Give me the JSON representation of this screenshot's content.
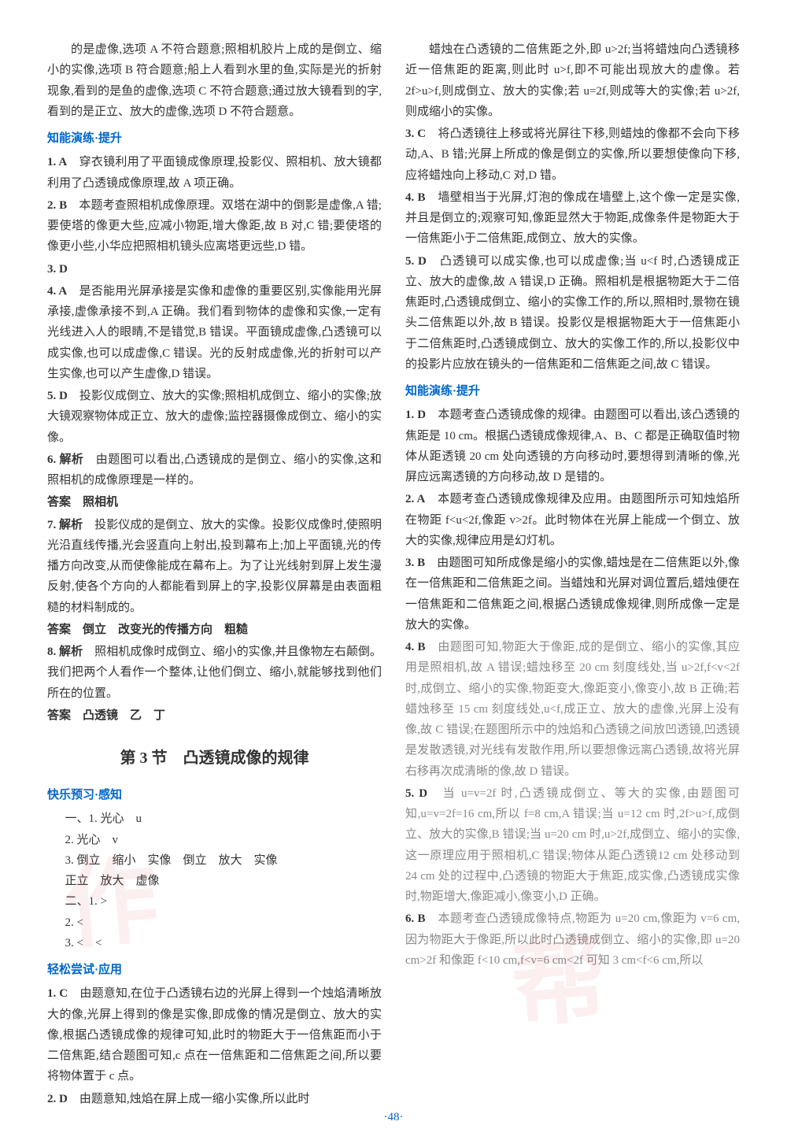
{
  "page_number": "·48·",
  "watermark_text": "作业帮",
  "colors": {
    "text": "#333333",
    "header_blue": "#0066cc",
    "page_num_blue": "#0066cc",
    "background": "#ffffff",
    "watermark": "rgba(200, 50, 50, 0.08)",
    "faded": "#888888"
  },
  "left_column": {
    "intro_para": "的是虚像,选项 A 不符合题意;照相机胶片上成的是倒立、缩小的实像,选项 B 符合题意;船上人看到水里的鱼,实际是光的折射现象,看到的是鱼的虚像,选项 C 不符合题意;通过放大镜看到的字,看到的是正立、放大的虚像,选项 D 不符合题意。",
    "section1_header": "知能演练·提升",
    "items": [
      {
        "num": "1. A",
        "text": "　穿衣镜利用了平面镜成像原理,投影仪、照相机、放大镜都利用了凸透镜成像原理,故 A 项正确。"
      },
      {
        "num": "2. B",
        "text": "　本题考查照相机成像原理。双塔在湖中的倒影是虚像,A 错;要使塔的像更大些,应减小物距,增大像距,故 B 对,C 错;要使塔的像更小些,小华应把照相机镜头应离塔更远些,D 错。"
      },
      {
        "num": "3. D",
        "text": ""
      },
      {
        "num": "4. A",
        "text": "　是否能用光屏承接是实像和虚像的重要区别,实像能用光屏承接,虚像承接不到,A 正确。我们看到物体的虚像和实像,一定有光线进入人的眼睛,不是错觉,B 错误。平面镜成虚像,凸透镜可以成实像,也可以成虚像,C 错误。光的反射成虚像,光的折射可以产生实像,也可以产生虚像,D 错误。"
      },
      {
        "num": "5. D",
        "text": "　投影仪成倒立、放大的实像;照相机成倒立、缩小的实像;放大镜观察物体成正立、放大的虚像;监控器摄像成倒立、缩小的实像。"
      },
      {
        "num": "6. 解析",
        "text": "　由题图可以看出,凸透镜成的是倒立、缩小的实像,这和照相机的成像原理是一样的。"
      },
      {
        "num": "",
        "text": "答案　照相机",
        "answer": true
      },
      {
        "num": "7. 解析",
        "text": "　投影仪成的是倒立、放大的实像。投影仪成像时,使照明光沿直线传播,光会竖直向上射出,投到幕布上;加上平面镜,光的传播方向改变,从而使像能成在幕布上。为了让光线射到屏上发生漫反射,使各个方向的人都能看到屏上的字,投影仪屏幕是由表面粗糙的材料制成的。"
      },
      {
        "num": "",
        "text": "答案　倒立　改变光的传播方向　粗糙",
        "answer": true
      },
      {
        "num": "8. 解析",
        "text": "　照相机成像时成倒立、缩小的实像,并且像物左右颠倒。我们把两个人看作一个整体,让他们倒立、缩小,就能够找到他们所在的位置。"
      },
      {
        "num": "",
        "text": "答案　凸透镜　乙　丁",
        "answer": true
      }
    ],
    "chapter_title": "第 3 节　凸透镜成像的规律",
    "section2_header": "快乐预习·感知",
    "preview_items": [
      "一、1. 光心　u",
      "2. 光心　v",
      "3. 倒立　缩小　实像　倒立　放大　实像",
      "正立　放大　虚像",
      "二、1. >",
      "2. <",
      "3. <　<"
    ],
    "section3_header": "轻松尝试·应用",
    "app_items": [
      {
        "num": "1. C",
        "text": "　由题意知,在位于凸透镜右边的光屏上得到一个烛焰清晰放大的像,光屏上得到的像是实像,即成像的情况是倒立、放大的实像,根据凸透镜成像的规律可知,此时的物距大于一倍焦距而小于二倍焦距,结合题图可知,c 点在一倍焦距和二倍焦距之间,所以要将物体置于 c 点。"
      },
      {
        "num": "2. D",
        "text": "　由题意知,烛焰在屏上成一缩小实像,所以此时"
      }
    ]
  },
  "right_column": {
    "intro_para": "蜡烛在凸透镜的二倍焦距之外,即 u>2f;当将蜡烛向凸透镜移近一倍焦距的距离,则此时 u>f,即不可能出现放大的虚像。若 2f>u>f,则成倒立、放大的实像;若 u=2f,则成等大的实像;若 u>2f,则成缩小的实像。",
    "items": [
      {
        "num": "3. C",
        "text": "　将凸透镜往上移或将光屏往下移,则蜡烛的像都不会向下移动,A、B 错;光屏上所成的像是倒立的实像,所以要想使像向下移,应将蜡烛向上移动,C 对,D 错。"
      },
      {
        "num": "4. B",
        "text": "　墙壁相当于光屏,灯泡的像成在墙壁上,这个像一定是实像,并且是倒立的;观察可知,像距显然大于物距,成像条件是物距大于一倍焦距小于二倍焦距,成倒立、放大的实像。"
      },
      {
        "num": "5. D",
        "text": "　凸透镜可以成实像,也可以成虚像;当 u<f 时,凸透镜成正立、放大的虚像,故 A 错误,D 正确。照相机是根据物距大于二倍焦距时,凸透镜成倒立、缩小的实像工作的,所以,照相时,景物在镜头二倍焦距以外,故 B 错误。投影仪是根据物距大于一倍焦距小于二倍焦距时,凸透镜成倒立、放大的实像工作的,所以,投影仪中的投影片应放在镜头的一倍焦距和二倍焦距之间,故 C 错误。"
      }
    ],
    "section1_header": "知能演练·提升",
    "exercise_items": [
      {
        "num": "1. D",
        "text": "　本题考查凸透镜成像的规律。由题图可以看出,该凸透镜的焦距是 10 cm。根据凸透镜成像规律,A、B、C 都是正确取值时物体从距透镜 20 cm 处向透镜的方向移动时,要想得到清晰的像,光屏应远离透镜的方向移动,故 D 是错的。"
      },
      {
        "num": "2. A",
        "text": "　本题考查凸透镜成像规律及应用。由题图所示可知烛焰所在物距 f<u<2f,像距 v>2f。此时物体在光屏上能成一个倒立、放大的实像,规律应用是幻灯机。"
      },
      {
        "num": "3. B",
        "text": "　由题图可知所成像是缩小的实像,蜡烛是在二倍焦距以外,像在一倍焦距和二倍焦距之间。当蜡烛和光屏对调位置后,蜡烛便在一倍焦距和二倍焦距之间,根据凸透镜成像规律,则所成像一定是放大的实像。"
      },
      {
        "num": "4. B",
        "text": "　由题图可知,物距大于像距,成的是倒立、缩小的实像,其应用是照相机,故 A 错误;蜡烛移至 20 cm 刻度线处,当 u>2f,f<v<2f 时,成倒立、缩小的实像,物距变大,像距变小,像变小,故 B 正确;若蜡烛移至 15 cm 刻度线处,u<f,成正立、放大的虚像,光屏上没有像,故 C 错误;在题图所示中的烛焰和凸透镜之间放凹透镜,凹透镜是发散透镜,对光线有发散作用,所以要想像远离凸透镜,故将光屏右移再次成清晰的像,故 D 错误。"
      },
      {
        "num": "5. D",
        "text": "　当 u=v=2f 时,凸透镜成倒立、等大的实像,由题图可知,u=v=2f=16 cm,所以 f=8 cm,A 错误;当 u=12 cm 时,2f>u>f,成倒立、放大的实像,B 错误;当 u=20 cm 时,u>2f,成倒立、缩小的实像,这一原理应用于照相机,C 错误;物体从距凸透镜12 cm 处移动到 24 cm 处的过程中,凸透镜的物距大于焦距,成实像,凸透镜成实像时,物距增大,像距减小,像变小,D 正确。"
      },
      {
        "num": "6. B",
        "text": "　本题考查凸透镜成像特点,物距为 u=20 cm,像距为 v=6 cm,因为物距大于像距,所以此时凸透镜成倒立、缩小的实像,即 u=20 cm>2f 和像距 f<10 cm,f<v=6 cm<2f 可知 3 cm<f<6 cm,所以"
      }
    ]
  }
}
